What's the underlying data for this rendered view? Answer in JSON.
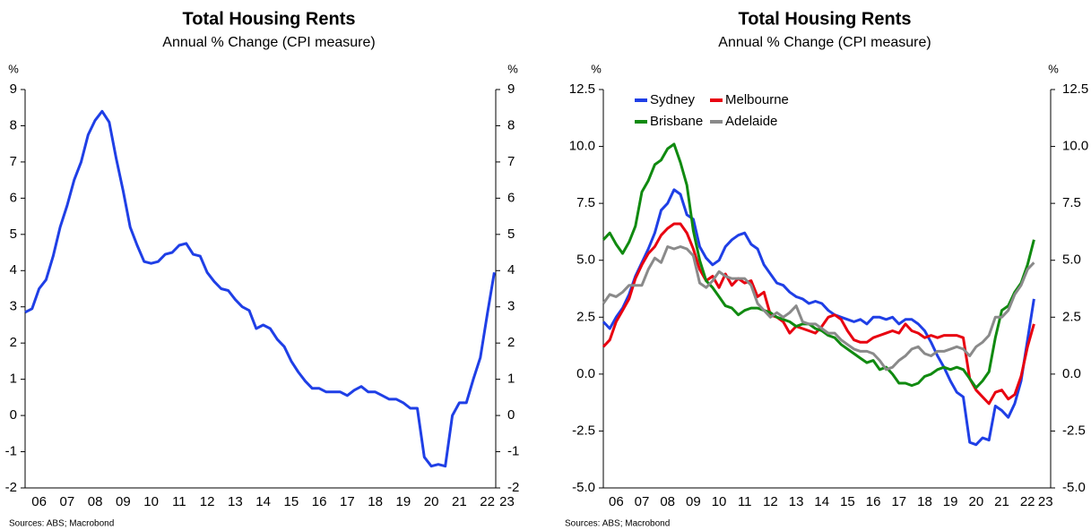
{
  "chart_data": [
    {
      "type": "line",
      "title": "Total Housing Rents",
      "subtitle": "Annual % Change (CPI measure)",
      "y_unit": "%",
      "source": "Sources: ABS; Macrobond",
      "x": [
        6.0,
        6.25,
        6.5,
        6.75,
        7.0,
        7.25,
        7.5,
        7.75,
        8.0,
        8.25,
        8.5,
        8.75,
        9.0,
        9.25,
        9.5,
        9.75,
        10.0,
        10.25,
        10.5,
        10.75,
        11.0,
        11.25,
        11.5,
        11.75,
        12.0,
        12.25,
        12.5,
        12.75,
        13.0,
        13.25,
        13.5,
        13.75,
        14.0,
        14.25,
        14.5,
        14.75,
        15.0,
        15.25,
        15.5,
        15.75,
        16.0,
        16.25,
        16.5,
        16.75,
        17.0,
        17.25,
        17.5,
        17.75,
        18.0,
        18.25,
        18.5,
        18.75,
        19.0,
        19.25,
        19.5,
        19.75,
        20.0,
        20.25,
        20.5,
        20.75,
        21.0,
        21.25,
        21.5,
        21.75,
        22.0,
        22.25,
        22.5,
        22.75
      ],
      "xlim": [
        6.0,
        22.8
      ],
      "xticks": [
        {
          "value": 6.5,
          "label": "06"
        },
        {
          "value": 7.5,
          "label": "07"
        },
        {
          "value": 8.5,
          "label": "08"
        },
        {
          "value": 9.5,
          "label": "09"
        },
        {
          "value": 10.5,
          "label": "10"
        },
        {
          "value": 11.5,
          "label": "11"
        },
        {
          "value": 12.5,
          "label": "12"
        },
        {
          "value": 13.5,
          "label": "13"
        },
        {
          "value": 14.5,
          "label": "14"
        },
        {
          "value": 15.5,
          "label": "15"
        },
        {
          "value": 16.5,
          "label": "16"
        },
        {
          "value": 17.5,
          "label": "17"
        },
        {
          "value": 18.5,
          "label": "18"
        },
        {
          "value": 19.5,
          "label": "19"
        },
        {
          "value": 20.5,
          "label": "20"
        },
        {
          "value": 21.5,
          "label": "21"
        },
        {
          "value": 22.5,
          "label": "22"
        },
        {
          "value": 23.2,
          "label": "23"
        }
      ],
      "ylim": [
        -2,
        9
      ],
      "yticks": [
        -2,
        -1,
        0,
        1,
        2,
        3,
        4,
        5,
        6,
        7,
        8,
        9
      ],
      "series": [
        {
          "name": null,
          "color": "#1f3fe6",
          "values": [
            2.85,
            2.95,
            3.5,
            3.75,
            4.4,
            5.2,
            5.8,
            6.5,
            7.0,
            7.75,
            8.15,
            8.4,
            8.1,
            7.1,
            6.2,
            5.2,
            4.7,
            4.25,
            4.2,
            4.25,
            4.45,
            4.5,
            4.7,
            4.75,
            4.45,
            4.4,
            3.95,
            3.7,
            3.5,
            3.45,
            3.2,
            3.0,
            2.9,
            2.4,
            2.5,
            2.4,
            2.1,
            1.9,
            1.5,
            1.2,
            0.95,
            0.75,
            0.75,
            0.65,
            0.65,
            0.65,
            0.55,
            0.7,
            0.8,
            0.65,
            0.65,
            0.55,
            0.45,
            0.45,
            0.35,
            0.2,
            0.2,
            -1.15,
            -1.4,
            -1.35,
            -1.4,
            0.0,
            0.35,
            0.35,
            1.0,
            1.6,
            2.8,
            3.95
          ]
        }
      ]
    },
    {
      "type": "line",
      "title": "Total Housing Rents",
      "subtitle": "Annual % Change (CPI measure)",
      "y_unit": "%",
      "source": "Sources: ABS; Macrobond",
      "legend": "upper left",
      "x": [
        6.0,
        6.25,
        6.5,
        6.75,
        7.0,
        7.25,
        7.5,
        7.75,
        8.0,
        8.25,
        8.5,
        8.75,
        9.0,
        9.25,
        9.5,
        9.75,
        10.0,
        10.25,
        10.5,
        10.75,
        11.0,
        11.25,
        11.5,
        11.75,
        12.0,
        12.25,
        12.5,
        12.75,
        13.0,
        13.25,
        13.5,
        13.75,
        14.0,
        14.25,
        14.5,
        14.75,
        15.0,
        15.25,
        15.5,
        15.75,
        16.0,
        16.25,
        16.5,
        16.75,
        17.0,
        17.25,
        17.5,
        17.75,
        18.0,
        18.25,
        18.5,
        18.75,
        19.0,
        19.25,
        19.5,
        19.75,
        20.0,
        20.25,
        20.5,
        20.75,
        21.0,
        21.25,
        21.5,
        21.75,
        22.0,
        22.25,
        22.5,
        22.75
      ],
      "xlim": [
        6.0,
        23.4
      ],
      "xticks": [
        {
          "value": 6.5,
          "label": "06"
        },
        {
          "value": 7.5,
          "label": "07"
        },
        {
          "value": 8.5,
          "label": "08"
        },
        {
          "value": 9.5,
          "label": "09"
        },
        {
          "value": 10.5,
          "label": "10"
        },
        {
          "value": 11.5,
          "label": "11"
        },
        {
          "value": 12.5,
          "label": "12"
        },
        {
          "value": 13.5,
          "label": "13"
        },
        {
          "value": 14.5,
          "label": "14"
        },
        {
          "value": 15.5,
          "label": "15"
        },
        {
          "value": 16.5,
          "label": "16"
        },
        {
          "value": 17.5,
          "label": "17"
        },
        {
          "value": 18.5,
          "label": "18"
        },
        {
          "value": 19.5,
          "label": "19"
        },
        {
          "value": 20.5,
          "label": "20"
        },
        {
          "value": 21.5,
          "label": "21"
        },
        {
          "value": 22.5,
          "label": "22"
        },
        {
          "value": 23.2,
          "label": "23"
        }
      ],
      "ylim": [
        -5,
        12.5
      ],
      "yticks": [
        {
          "value": -5,
          "label": "-5.0"
        },
        -2.5,
        {
          "value": 0,
          "label": "0.0"
        },
        2.5,
        {
          "value": 5,
          "label": "5.0"
        },
        7.5,
        {
          "value": 10,
          "label": "10.0"
        },
        12.5
      ],
      "series": [
        {
          "name": "Sydney",
          "color": "#1f3fe6",
          "values": [
            2.3,
            2.0,
            2.5,
            2.9,
            3.5,
            4.3,
            4.9,
            5.5,
            6.2,
            7.2,
            7.5,
            8.1,
            7.9,
            7.0,
            6.8,
            5.6,
            5.1,
            4.8,
            5.0,
            5.6,
            5.9,
            6.1,
            6.2,
            5.7,
            5.5,
            4.8,
            4.4,
            4.0,
            3.9,
            3.6,
            3.4,
            3.3,
            3.1,
            3.2,
            3.1,
            2.8,
            2.6,
            2.5,
            2.4,
            2.3,
            2.4,
            2.2,
            2.5,
            2.5,
            2.4,
            2.5,
            2.2,
            2.4,
            2.4,
            2.2,
            1.9,
            1.4,
            0.8,
            0.3,
            -0.3,
            -0.8,
            -1.0,
            -3.0,
            -3.1,
            -2.8,
            -2.9,
            -1.4,
            -1.6,
            -1.9,
            -1.3,
            -0.3,
            1.5,
            3.3
          ]
        },
        {
          "name": "Melbourne",
          "color": "#e80010",
          "values": [
            1.2,
            1.5,
            2.3,
            2.8,
            3.3,
            4.2,
            4.8,
            5.3,
            5.6,
            6.1,
            6.4,
            6.6,
            6.6,
            6.2,
            5.5,
            4.6,
            4.1,
            4.3,
            3.8,
            4.4,
            3.9,
            4.2,
            4.0,
            4.1,
            3.4,
            3.6,
            2.6,
            2.5,
            2.3,
            1.8,
            2.1,
            2.0,
            1.9,
            1.8,
            2.1,
            2.5,
            2.6,
            2.4,
            1.9,
            1.5,
            1.4,
            1.4,
            1.6,
            1.7,
            1.8,
            1.9,
            1.8,
            2.2,
            1.9,
            1.8,
            1.6,
            1.7,
            1.6,
            1.7,
            1.7,
            1.7,
            1.6,
            -0.2,
            -0.7,
            -1.0,
            -1.3,
            -0.8,
            -0.7,
            -1.1,
            -0.9,
            -0.1,
            1.2,
            2.2
          ]
        },
        {
          "name": "Brisbane",
          "color": "#108a10",
          "values": [
            5.9,
            6.2,
            5.7,
            5.3,
            5.8,
            6.5,
            8.0,
            8.5,
            9.2,
            9.4,
            9.9,
            10.1,
            9.3,
            8.3,
            6.3,
            5.0,
            4.1,
            3.8,
            3.4,
            3.0,
            2.9,
            2.6,
            2.8,
            2.9,
            2.9,
            2.8,
            2.7,
            2.5,
            2.4,
            2.3,
            2.1,
            2.2,
            2.2,
            2.0,
            1.9,
            1.7,
            1.6,
            1.3,
            1.1,
            0.9,
            0.7,
            0.5,
            0.6,
            0.2,
            0.3,
            0.0,
            -0.4,
            -0.4,
            -0.5,
            -0.4,
            -0.1,
            0.0,
            0.2,
            0.3,
            0.2,
            0.3,
            0.2,
            -0.2,
            -0.6,
            -0.3,
            0.1,
            1.6,
            2.8,
            3.0,
            3.6,
            4.0,
            4.8,
            5.9
          ]
        },
        {
          "name": "Adelaide",
          "color": "#8a8a8a",
          "values": [
            3.1,
            3.5,
            3.4,
            3.6,
            3.9,
            3.9,
            3.9,
            4.6,
            5.1,
            4.9,
            5.6,
            5.5,
            5.6,
            5.5,
            5.2,
            4.0,
            3.8,
            4.1,
            4.5,
            4.3,
            4.2,
            4.2,
            4.2,
            3.9,
            3.1,
            2.8,
            2.5,
            2.7,
            2.5,
            2.7,
            3.0,
            2.3,
            2.2,
            2.2,
            2.0,
            1.8,
            1.8,
            1.5,
            1.3,
            1.1,
            1.0,
            1.0,
            0.9,
            0.6,
            0.2,
            0.3,
            0.6,
            0.8,
            1.1,
            1.2,
            0.9,
            0.8,
            1.0,
            1.0,
            1.1,
            1.2,
            1.1,
            0.8,
            1.2,
            1.4,
            1.7,
            2.5,
            2.5,
            2.8,
            3.5,
            3.9,
            4.6,
            4.9
          ]
        }
      ]
    }
  ]
}
